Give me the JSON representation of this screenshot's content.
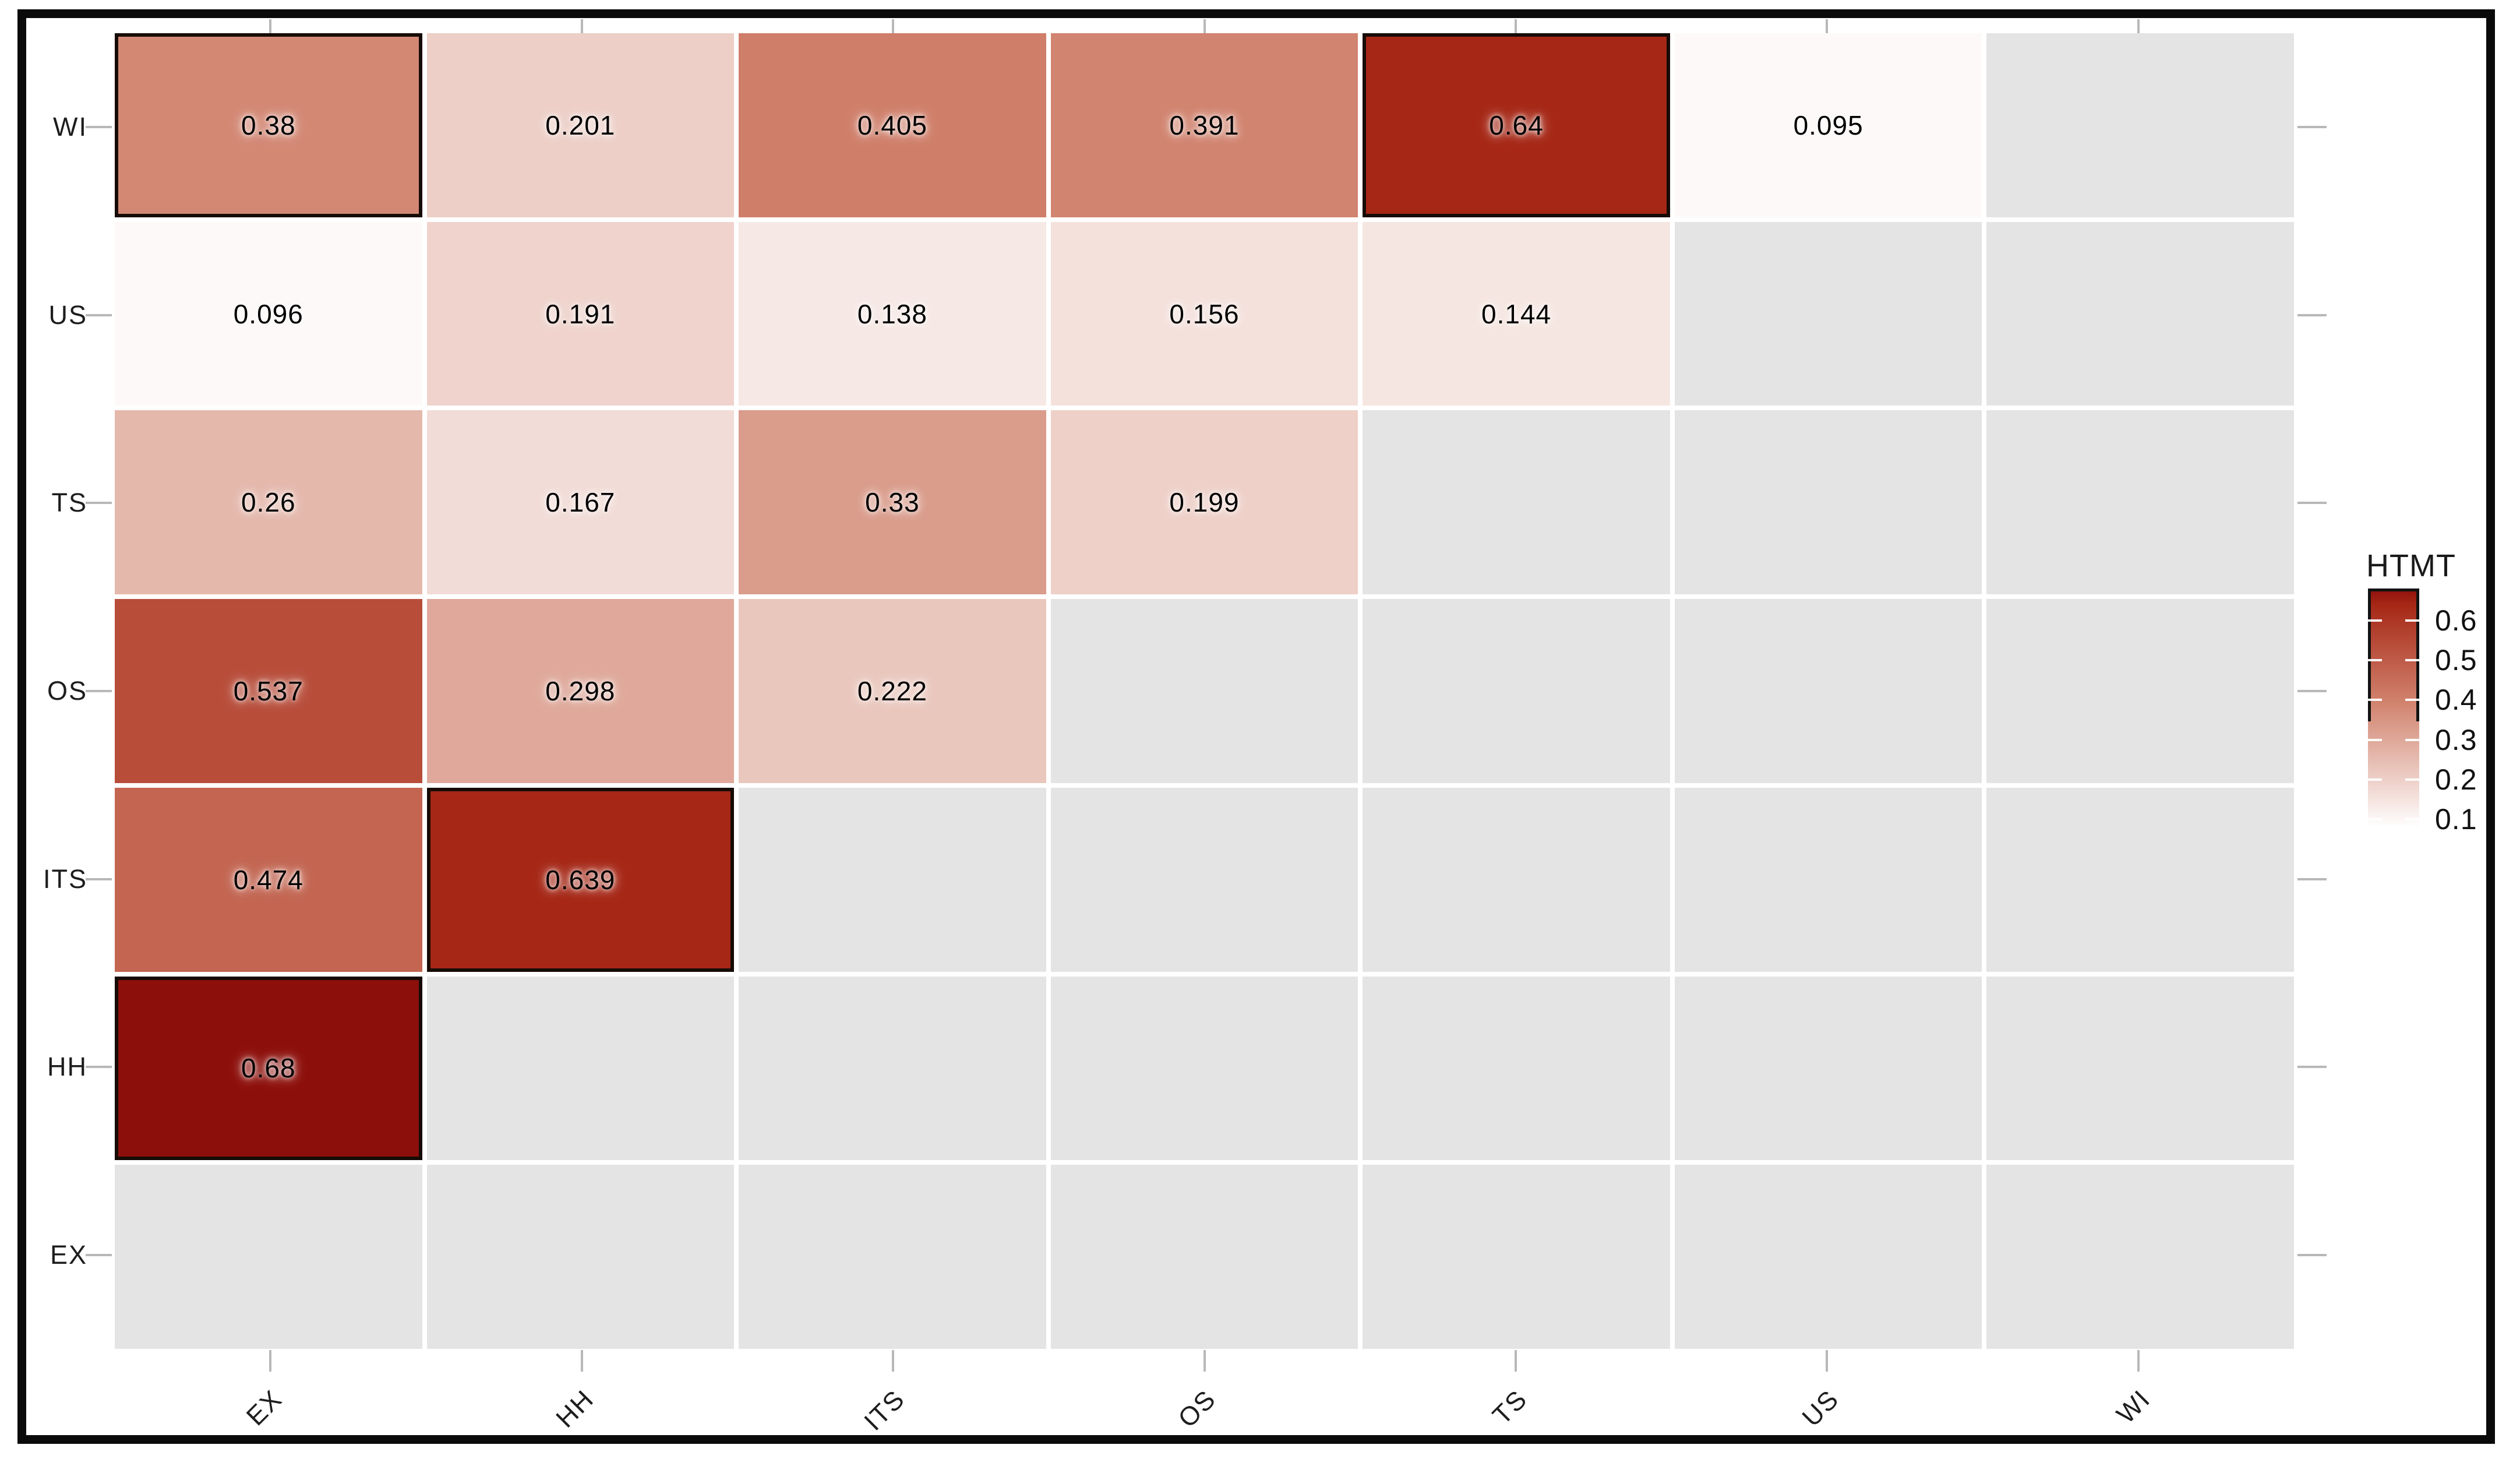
{
  "figure": {
    "background": "#ffffff",
    "frame_color": "#0a0a0a"
  },
  "chart_data": {
    "type": "heatmap",
    "title": "",
    "x_categories": [
      "EX",
      "HH",
      "ITS",
      "OS",
      "TS",
      "US",
      "WI"
    ],
    "y_categories_top_to_bottom": [
      "WI",
      "US",
      "TS",
      "OS",
      "ITS",
      "HH",
      "EX"
    ],
    "cells": [
      {
        "row": "WI",
        "col": "EX",
        "label": "0.38",
        "value": 0.38,
        "outlined": true
      },
      {
        "row": "WI",
        "col": "HH",
        "label": "0.201",
        "value": 0.201,
        "outlined": false
      },
      {
        "row": "WI",
        "col": "ITS",
        "label": "0.405",
        "value": 0.405,
        "outlined": false
      },
      {
        "row": "WI",
        "col": "OS",
        "label": "0.391",
        "value": 0.391,
        "outlined": false
      },
      {
        "row": "WI",
        "col": "TS",
        "label": "0.64",
        "value": 0.64,
        "outlined": true
      },
      {
        "row": "WI",
        "col": "US",
        "label": "0.095",
        "value": 0.095,
        "outlined": false
      },
      {
        "row": "US",
        "col": "EX",
        "label": "0.096",
        "value": 0.096,
        "outlined": false
      },
      {
        "row": "US",
        "col": "HH",
        "label": "0.191",
        "value": 0.191,
        "outlined": false
      },
      {
        "row": "US",
        "col": "ITS",
        "label": "0.138",
        "value": 0.138,
        "outlined": false
      },
      {
        "row": "US",
        "col": "OS",
        "label": "0.156",
        "value": 0.156,
        "outlined": false
      },
      {
        "row": "US",
        "col": "TS",
        "label": "0.144",
        "value": 0.144,
        "outlined": false
      },
      {
        "row": "TS",
        "col": "EX",
        "label": "0.26",
        "value": 0.26,
        "outlined": false
      },
      {
        "row": "TS",
        "col": "HH",
        "label": "0.167",
        "value": 0.167,
        "outlined": false
      },
      {
        "row": "TS",
        "col": "ITS",
        "label": "0.33",
        "value": 0.33,
        "outlined": false
      },
      {
        "row": "TS",
        "col": "OS",
        "label": "0.199",
        "value": 0.199,
        "outlined": false
      },
      {
        "row": "OS",
        "col": "EX",
        "label": "0.537",
        "value": 0.537,
        "outlined": false
      },
      {
        "row": "OS",
        "col": "HH",
        "label": "0.298",
        "value": 0.298,
        "outlined": false
      },
      {
        "row": "OS",
        "col": "ITS",
        "label": "0.222",
        "value": 0.222,
        "outlined": false
      },
      {
        "row": "ITS",
        "col": "EX",
        "label": "0.474",
        "value": 0.474,
        "outlined": false
      },
      {
        "row": "ITS",
        "col": "HH",
        "label": "0.639",
        "value": 0.639,
        "outlined": true
      },
      {
        "row": "HH",
        "col": "EX",
        "label": "0.68",
        "value": 0.68,
        "outlined": true
      }
    ],
    "legend": {
      "title": "HTMT",
      "tick_labels": [
        "0.6",
        "0.5",
        "0.4",
        "0.3",
        "0.2",
        "0.1"
      ],
      "tick_values": [
        0.6,
        0.5,
        0.4,
        0.3,
        0.2,
        0.1
      ],
      "top_value": 0.68,
      "bottom_value": 0.065,
      "position": "right"
    },
    "color_scale": {
      "stops": [
        {
          "value": 0.08,
          "color": "#ffffff"
        },
        {
          "value": 0.4,
          "color": "#d0806b"
        },
        {
          "value": 0.64,
          "color": "#a62716"
        },
        {
          "value": 0.68,
          "color": "#8d0f0b"
        }
      ],
      "empty_color": "#e4e4e4",
      "outline_color": "#170b06"
    },
    "layout_hints": {
      "grid": "off",
      "upper_triangle": "empty-gray",
      "x_tick_label_angle": 45
    }
  }
}
